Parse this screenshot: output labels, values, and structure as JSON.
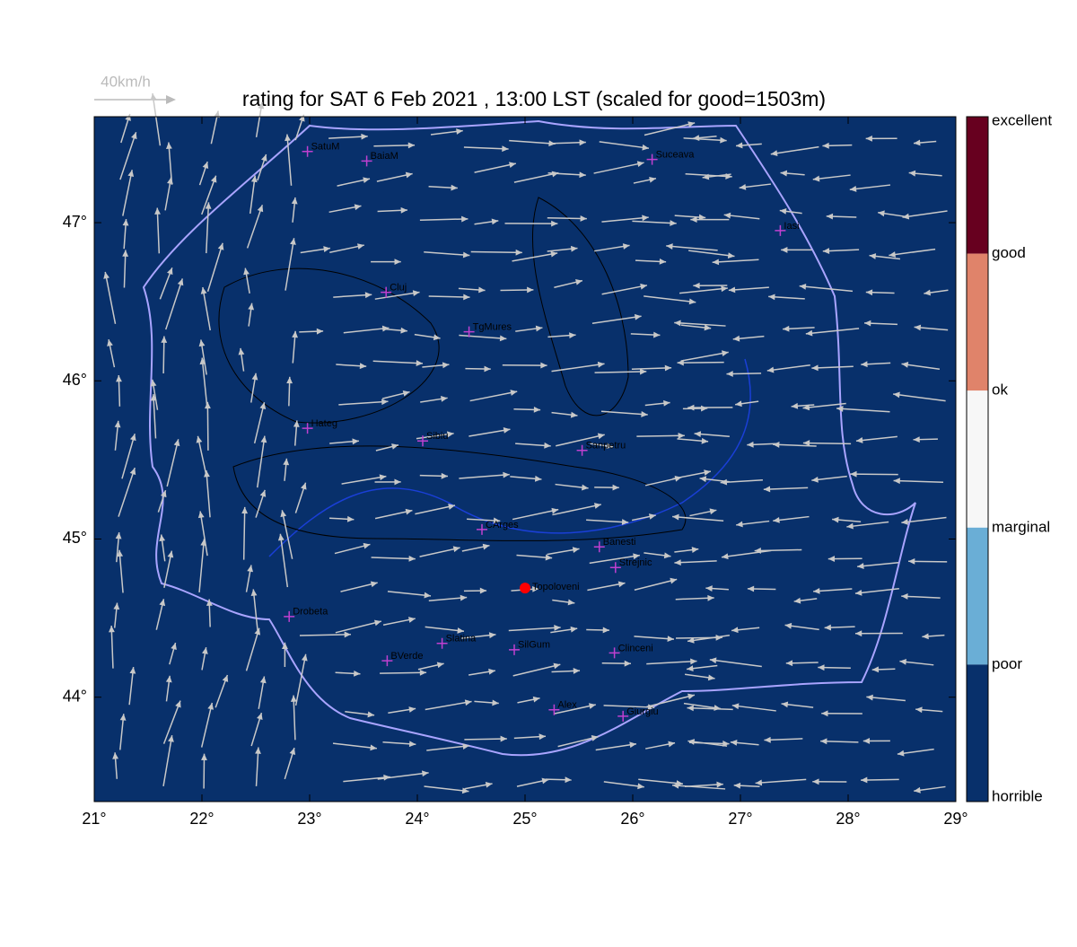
{
  "map": {
    "title": "rating for SAT 6 Feb 2021 , 13:00 LST (scaled for good=1503m)",
    "wind_scale_label": "40km/h",
    "xlim": [
      21,
      29
    ],
    "ylim": [
      43.34,
      47.67
    ],
    "xticks": [
      {
        "value": 21,
        "label": "21°"
      },
      {
        "value": 22,
        "label": "22°"
      },
      {
        "value": 23,
        "label": "23°"
      },
      {
        "value": 24,
        "label": "24°"
      },
      {
        "value": 25,
        "label": "25°"
      },
      {
        "value": 26,
        "label": "26°"
      },
      {
        "value": 27,
        "label": "27°"
      },
      {
        "value": 28,
        "label": "28°"
      },
      {
        "value": 29,
        "label": "29°"
      }
    ],
    "yticks": [
      {
        "value": 44,
        "label": "44°"
      },
      {
        "value": 45,
        "label": "45°"
      },
      {
        "value": 46,
        "label": "46°"
      },
      {
        "value": 47,
        "label": "47°"
      }
    ],
    "colorbar": {
      "labels": [
        "excellent",
        "good",
        "ok",
        "marginal",
        "poor",
        "horrible"
      ],
      "colors": [
        "#67001f",
        "#e0836a",
        "#f7f7f7",
        "#6aaed6",
        "#08306b"
      ]
    },
    "background_color": "#08306b",
    "cities": [
      {
        "name": "SatuM",
        "lon": 22.98,
        "lat": 47.45
      },
      {
        "name": "BaiaM",
        "lon": 23.53,
        "lat": 47.39
      },
      {
        "name": "Suceava",
        "lon": 26.18,
        "lat": 47.4
      },
      {
        "name": "Iasi",
        "lon": 27.37,
        "lat": 46.95
      },
      {
        "name": "Cluj",
        "lon": 23.71,
        "lat": 46.56
      },
      {
        "name": "TgMures",
        "lon": 24.48,
        "lat": 46.31
      },
      {
        "name": "Hateg",
        "lon": 22.98,
        "lat": 45.7
      },
      {
        "name": "Sibiu",
        "lon": 24.05,
        "lat": 45.62
      },
      {
        "name": "Sanpetru",
        "lon": 25.53,
        "lat": 45.56
      },
      {
        "name": "CArges",
        "lon": 24.6,
        "lat": 45.06
      },
      {
        "name": "Banesti",
        "lon": 25.69,
        "lat": 44.95
      },
      {
        "name": "Strejnic",
        "lon": 25.84,
        "lat": 44.82
      },
      {
        "name": "Drobeta",
        "lon": 22.81,
        "lat": 44.51
      },
      {
        "name": "Slatina",
        "lon": 24.23,
        "lat": 44.34
      },
      {
        "name": "SilGum",
        "lon": 24.9,
        "lat": 44.3
      },
      {
        "name": "Clinceni",
        "lon": 25.83,
        "lat": 44.28
      },
      {
        "name": "BVerde",
        "lon": 23.72,
        "lat": 44.23
      },
      {
        "name": "Alex",
        "lon": 25.27,
        "lat": 43.92
      },
      {
        "name": "Giurgiu",
        "lon": 25.91,
        "lat": 43.88
      }
    ],
    "site": {
      "name": "Topoloveni",
      "lon": 25.0,
      "lat": 44.69
    }
  }
}
